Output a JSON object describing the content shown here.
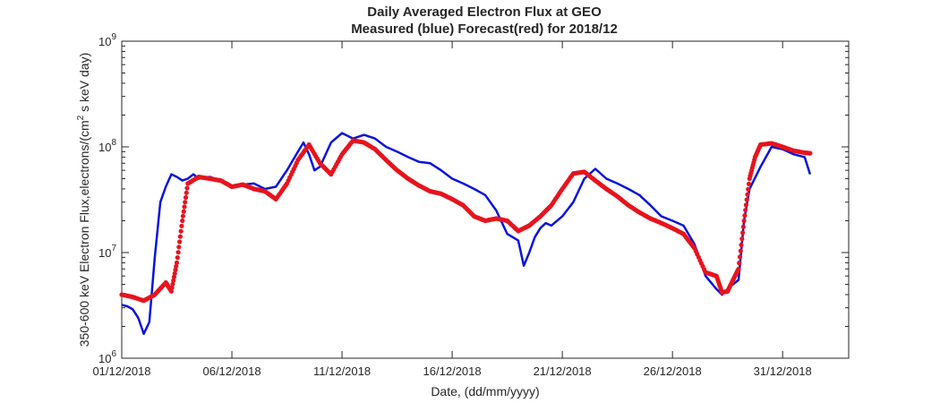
{
  "chart_data": {
    "type": "line",
    "title": "Daily Averaged Electron Flux at GEO",
    "subtitle": "Measured (blue) Forecast(red) for 2018/12",
    "xlabel": "Date, (dd/mm/yyyy)",
    "ylabel": "350-600 keV Electron Flux,electrons/(cm",
    "ylabel_sup": "2",
    "ylabel_tail": " s keV day)",
    "y_scale": "log",
    "ylim": [
      1000000,
      1000000000
    ],
    "xlim": [
      "2018-12-01",
      "2019-01-03"
    ],
    "grid": false,
    "x_tick_values": [
      "2018-12-01",
      "2018-12-06",
      "2018-12-11",
      "2018-12-16",
      "2018-12-21",
      "2018-12-26",
      "2018-12-31"
    ],
    "x_tick_labels": [
      "01/12/2018",
      "06/12/2018",
      "11/12/2018",
      "16/12/2018",
      "21/12/2018",
      "26/12/2018",
      "31/12/2018"
    ],
    "y_ticks": [
      {
        "value": 1000000,
        "base": "10",
        "exp": "6"
      },
      {
        "value": 10000000,
        "base": "10",
        "exp": "7"
      },
      {
        "value": 100000000,
        "base": "10",
        "exp": "8"
      },
      {
        "value": 1000000000,
        "base": "10",
        "exp": "9"
      }
    ],
    "series": [
      {
        "name": "Measured",
        "color": "#0a14d8",
        "style": "line",
        "x": [
          "2018-12-01 00:00",
          "2018-12-01 06:00",
          "2018-12-01 12:00",
          "2018-12-01 18:00",
          "2018-12-02 00:00",
          "2018-12-02 06:00",
          "2018-12-02 12:00",
          "2018-12-02 18:00",
          "2018-12-03 00:00",
          "2018-12-03 06:00",
          "2018-12-03 12:00",
          "2018-12-03 18:00",
          "2018-12-04 00:00",
          "2018-12-04 06:00",
          "2018-12-04 12:00",
          "2018-12-05 00:00",
          "2018-12-05 12:00",
          "2018-12-06 00:00",
          "2018-12-06 12:00",
          "2018-12-07 00:00",
          "2018-12-07 12:00",
          "2018-12-08 00:00",
          "2018-12-08 12:00",
          "2018-12-09 00:00",
          "2018-12-09 06:00",
          "2018-12-09 12:00",
          "2018-12-09 18:00",
          "2018-12-10 00:00",
          "2018-12-10 12:00",
          "2018-12-11 00:00",
          "2018-12-11 12:00",
          "2018-12-12 00:00",
          "2018-12-12 12:00",
          "2018-12-13 00:00",
          "2018-12-13 12:00",
          "2018-12-14 00:00",
          "2018-12-14 12:00",
          "2018-12-15 00:00",
          "2018-12-15 12:00",
          "2018-12-16 00:00",
          "2018-12-16 12:00",
          "2018-12-17 00:00",
          "2018-12-17 12:00",
          "2018-12-18 00:00",
          "2018-12-18 12:00",
          "2018-12-19 00:00",
          "2018-12-19 06:00",
          "2018-12-19 12:00",
          "2018-12-19 18:00",
          "2018-12-20 00:00",
          "2018-12-20 06:00",
          "2018-12-20 12:00",
          "2018-12-21 00:00",
          "2018-12-21 12:00",
          "2018-12-22 00:00",
          "2018-12-22 12:00",
          "2018-12-23 00:00",
          "2018-12-23 12:00",
          "2018-12-24 00:00",
          "2018-12-24 12:00",
          "2018-12-25 00:00",
          "2018-12-25 12:00",
          "2018-12-26 00:00",
          "2018-12-26 12:00",
          "2018-12-27 00:00",
          "2018-12-27 12:00",
          "2018-12-28 00:00",
          "2018-12-28 06:00",
          "2018-12-28 12:00",
          "2018-12-28 18:00",
          "2018-12-29 00:00",
          "2018-12-29 06:00",
          "2018-12-29 12:00",
          "2018-12-30 00:00",
          "2018-12-30 12:00",
          "2018-12-31 00:00",
          "2018-12-31 12:00",
          "2019-01-01 00:00",
          "2019-01-01 06:00"
        ],
        "values": [
          3200000,
          3100000,
          2900000,
          2400000,
          1700000,
          2200000,
          9000000,
          30000000,
          42000000,
          55000000,
          52000000,
          48000000,
          50000000,
          55000000,
          50000000,
          52000000,
          48000000,
          42000000,
          44000000,
          45000000,
          40000000,
          42000000,
          60000000,
          90000000,
          110000000,
          85000000,
          60000000,
          65000000,
          110000000,
          135000000,
          120000000,
          130000000,
          120000000,
          100000000,
          90000000,
          80000000,
          72000000,
          70000000,
          60000000,
          50000000,
          45000000,
          40000000,
          35000000,
          25000000,
          15000000,
          13000000,
          7500000,
          10000000,
          14000000,
          17000000,
          19000000,
          18000000,
          22000000,
          30000000,
          50000000,
          62000000,
          50000000,
          45000000,
          40000000,
          35000000,
          28000000,
          22000000,
          20000000,
          18000000,
          12000000,
          6000000,
          4500000,
          4000000,
          4500000,
          5000000,
          5500000,
          20000000,
          40000000,
          65000000,
          100000000,
          95000000,
          85000000,
          80000000,
          55000000
        ]
      },
      {
        "name": "Forecast",
        "color": "#e6141e",
        "style": "dots",
        "x": [
          "2018-12-01 00:00",
          "2018-12-01 12:00",
          "2018-12-02 00:00",
          "2018-12-02 12:00",
          "2018-12-03 00:00",
          "2018-12-03 06:00",
          "2018-12-03 12:00",
          "2018-12-03 18:00",
          "2018-12-04 00:00",
          "2018-12-04 12:00",
          "2018-12-05 00:00",
          "2018-12-05 12:00",
          "2018-12-06 00:00",
          "2018-12-06 12:00",
          "2018-12-07 00:00",
          "2018-12-07 12:00",
          "2018-12-08 00:00",
          "2018-12-08 12:00",
          "2018-12-09 00:00",
          "2018-12-09 12:00",
          "2018-12-10 00:00",
          "2018-12-10 12:00",
          "2018-12-11 00:00",
          "2018-12-11 12:00",
          "2018-12-12 00:00",
          "2018-12-12 12:00",
          "2018-12-13 00:00",
          "2018-12-13 12:00",
          "2018-12-14 00:00",
          "2018-12-14 12:00",
          "2018-12-15 00:00",
          "2018-12-15 12:00",
          "2018-12-16 00:00",
          "2018-12-16 12:00",
          "2018-12-17 00:00",
          "2018-12-17 12:00",
          "2018-12-18 00:00",
          "2018-12-18 12:00",
          "2018-12-19 00:00",
          "2018-12-19 12:00",
          "2018-12-20 00:00",
          "2018-12-20 12:00",
          "2018-12-21 00:00",
          "2018-12-21 12:00",
          "2018-12-22 00:00",
          "2018-12-22 12:00",
          "2018-12-23 00:00",
          "2018-12-23 12:00",
          "2018-12-24 00:00",
          "2018-12-24 12:00",
          "2018-12-25 00:00",
          "2018-12-25 12:00",
          "2018-12-26 00:00",
          "2018-12-26 12:00",
          "2018-12-27 00:00",
          "2018-12-27 12:00",
          "2018-12-28 00:00",
          "2018-12-28 06:00",
          "2018-12-28 12:00",
          "2018-12-28 18:00",
          "2018-12-29 00:00",
          "2018-12-29 06:00",
          "2018-12-29 12:00",
          "2018-12-29 18:00",
          "2018-12-30 00:00",
          "2018-12-30 12:00",
          "2018-12-31 00:00",
          "2018-12-31 12:00",
          "2019-01-01 00:00",
          "2019-01-01 06:00"
        ],
        "values": [
          4000000,
          3800000,
          3500000,
          4000000,
          5200000,
          4300000,
          8000000,
          20000000,
          45000000,
          52000000,
          50000000,
          48000000,
          42000000,
          44000000,
          40000000,
          38000000,
          32000000,
          45000000,
          75000000,
          105000000,
          70000000,
          55000000,
          85000000,
          115000000,
          110000000,
          95000000,
          75000000,
          60000000,
          50000000,
          43000000,
          38000000,
          36000000,
          32000000,
          28000000,
          22000000,
          20000000,
          21000000,
          20000000,
          16000000,
          18000000,
          22000000,
          28000000,
          40000000,
          56000000,
          58000000,
          48000000,
          40000000,
          34000000,
          28000000,
          24000000,
          21000000,
          19000000,
          17000000,
          15000000,
          11000000,
          6500000,
          6000000,
          4200000,
          4300000,
          5500000,
          7000000,
          20000000,
          50000000,
          80000000,
          105000000,
          108000000,
          100000000,
          92000000,
          88000000,
          87000000
        ]
      }
    ]
  }
}
